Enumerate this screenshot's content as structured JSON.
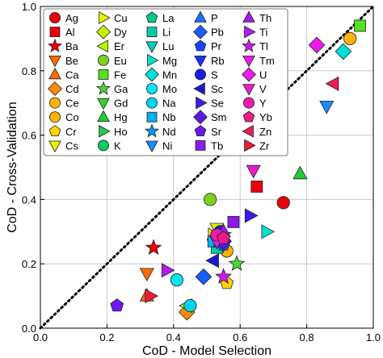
{
  "chart_data": {
    "type": "scatter",
    "xlabel": "CoD - Model Selection",
    "ylabel": "CoD - Cross-Validation",
    "xlim": [
      0,
      1
    ],
    "ylim": [
      0,
      1
    ],
    "x_ticks": [
      "0.0",
      "0.2",
      "0.4",
      "0.6",
      "0.8",
      "1.0"
    ],
    "y_ticks": [
      "0.0",
      "0.2",
      "0.4",
      "0.6",
      "0.8",
      "1.0"
    ],
    "grid": true,
    "diagonal_reference": "dotted y = x",
    "legend_position": "top-left",
    "series": [
      {
        "name": "Ag",
        "color": "#e8000b",
        "marker": "circle",
        "x": 0.73,
        "y": 0.39
      },
      {
        "name": "Al",
        "color": "#e8000b",
        "marker": "square",
        "x": 0.65,
        "y": 0.44
      },
      {
        "name": "Ba",
        "color": "#e8000b",
        "marker": "star",
        "x": 0.34,
        "y": 0.25
      },
      {
        "name": "Be",
        "color": "#ff6a00",
        "marker": "triangle-down",
        "x": 0.32,
        "y": 0.17
      },
      {
        "name": "Ca",
        "color": "#ff6a00",
        "marker": "triangle-up",
        "x": 0.32,
        "y": 0.1
      },
      {
        "name": "Cd",
        "color": "#ff8c00",
        "marker": "diamond",
        "x": 0.44,
        "y": 0.05
      },
      {
        "name": "Ce",
        "color": "#ffb300",
        "marker": "circle",
        "x": 0.56,
        "y": 0.24
      },
      {
        "name": "Co",
        "color": "#ffb300",
        "marker": "circle",
        "x": 0.93,
        "y": 0.9
      },
      {
        "name": "Cr",
        "color": "#ffd400",
        "marker": "pentagon",
        "x": 0.56,
        "y": 0.14
      },
      {
        "name": "Cs",
        "color": "#e6f200",
        "marker": "triangle-down",
        "x": 0.53,
        "y": 0.31
      },
      {
        "name": "Cu",
        "color": "#e6f200",
        "marker": "triangle-right",
        "x": 0.52,
        "y": 0.29
      },
      {
        "name": "Dy",
        "color": "#c8f200",
        "marker": "diamond",
        "x": 0.53,
        "y": 0.28
      },
      {
        "name": "Er",
        "color": "#b0ff00",
        "marker": "triangle-left",
        "x": 0.44,
        "y": 0.07
      },
      {
        "name": "Eu",
        "color": "#7cd21a",
        "marker": "circle",
        "x": 0.51,
        "y": 0.4
      },
      {
        "name": "Fe",
        "color": "#55e020",
        "marker": "square",
        "x": 0.96,
        "y": 0.94
      },
      {
        "name": "Ga",
        "color": "#44d92a",
        "marker": "star",
        "x": 0.59,
        "y": 0.2
      },
      {
        "name": "Gd",
        "color": "#33d42e",
        "marker": "triangle-down",
        "x": 0.54,
        "y": 0.29
      },
      {
        "name": "Hg",
        "color": "#22cc33",
        "marker": "triangle-up",
        "x": 0.78,
        "y": 0.48
      },
      {
        "name": "Ho",
        "color": "#22cc55",
        "marker": "triangle-right",
        "x": 0.53,
        "y": 0.27
      },
      {
        "name": "K",
        "color": "#00cc66",
        "marker": "circle",
        "x": 0.54,
        "y": 0.28
      },
      {
        "name": "La",
        "color": "#00cc88",
        "marker": "pentagon",
        "x": 0.52,
        "y": 0.27
      },
      {
        "name": "Li",
        "color": "#00ccaa",
        "marker": "square",
        "x": 0.53,
        "y": 0.25
      },
      {
        "name": "Lu",
        "color": "#00ccbb",
        "marker": "triangle-down",
        "x": 0.55,
        "y": 0.26
      },
      {
        "name": "Mg",
        "color": "#00e0cc",
        "marker": "triangle-right",
        "x": 0.68,
        "y": 0.3
      },
      {
        "name": "Mn",
        "color": "#00e0dd",
        "marker": "diamond",
        "x": 0.91,
        "y": 0.86
      },
      {
        "name": "Mo",
        "color": "#00e6ee",
        "marker": "circle",
        "x": 0.41,
        "y": 0.15
      },
      {
        "name": "Na",
        "color": "#00d4f0",
        "marker": "circle",
        "x": 0.45,
        "y": 0.07
      },
      {
        "name": "Nb",
        "color": "#00b0f0",
        "marker": "square",
        "x": 0.52,
        "y": 0.27
      },
      {
        "name": "Nd",
        "color": "#0099ff",
        "marker": "star",
        "x": 0.55,
        "y": 0.29
      },
      {
        "name": "Ni",
        "color": "#1a8cff",
        "marker": "triangle-down",
        "x": 0.86,
        "y": 0.69
      },
      {
        "name": "P",
        "color": "#1a6fff",
        "marker": "triangle-up",
        "x": 0.54,
        "y": 0.27
      },
      {
        "name": "Pb",
        "color": "#1a5cff",
        "marker": "diamond",
        "x": 0.49,
        "y": 0.16
      },
      {
        "name": "Pr",
        "color": "#1a40ff",
        "marker": "pentagon",
        "x": 0.55,
        "y": 0.26
      },
      {
        "name": "Rb",
        "color": "#1a30ff",
        "marker": "triangle-down",
        "x": 0.54,
        "y": 0.28
      },
      {
        "name": "S",
        "color": "#1a1aee",
        "marker": "circle",
        "x": 0.54,
        "y": 0.3
      },
      {
        "name": "Sc",
        "color": "#1a1acc",
        "marker": "triangle-left",
        "x": 0.52,
        "y": 0.21
      },
      {
        "name": "Se",
        "color": "#3a1aee",
        "marker": "triangle-right",
        "x": 0.63,
        "y": 0.35
      },
      {
        "name": "Sm",
        "color": "#5a1ae6",
        "marker": "diamond",
        "x": 0.55,
        "y": 0.27
      },
      {
        "name": "Sr",
        "color": "#6a1aee",
        "marker": "pentagon",
        "x": 0.23,
        "y": 0.07
      },
      {
        "name": "Tb",
        "color": "#8a1aee",
        "marker": "square",
        "x": 0.58,
        "y": 0.33
      },
      {
        "name": "Th",
        "color": "#a01aee",
        "marker": "triangle-up",
        "x": 0.55,
        "y": 0.3
      },
      {
        "name": "Ti",
        "color": "#b31aee",
        "marker": "triangle-right",
        "x": 0.38,
        "y": 0.18
      },
      {
        "name": "Tl",
        "color": "#cc1aee",
        "marker": "star",
        "x": 0.55,
        "y": 0.16
      },
      {
        "name": "Tm",
        "color": "#e61aee",
        "marker": "triangle-down",
        "x": 0.53,
        "y": 0.27
      },
      {
        "name": "U",
        "color": "#ee1aee",
        "marker": "diamond",
        "x": 0.83,
        "y": 0.88
      },
      {
        "name": "V",
        "color": "#ee1acc",
        "marker": "triangle-down",
        "x": 0.64,
        "y": 0.49
      },
      {
        "name": "Y",
        "color": "#ee1aaa",
        "marker": "circle",
        "x": 0.53,
        "y": 0.29
      },
      {
        "name": "Yb",
        "color": "#ee1a88",
        "marker": "pentagon",
        "x": 0.55,
        "y": 0.28
      },
      {
        "name": "Zn",
        "color": "#ee1a55",
        "marker": "triangle-left",
        "x": 0.88,
        "y": 0.76
      },
      {
        "name": "Zr",
        "color": "#ee1a33",
        "marker": "triangle-right",
        "x": 0.33,
        "y": 0.1
      }
    ]
  }
}
